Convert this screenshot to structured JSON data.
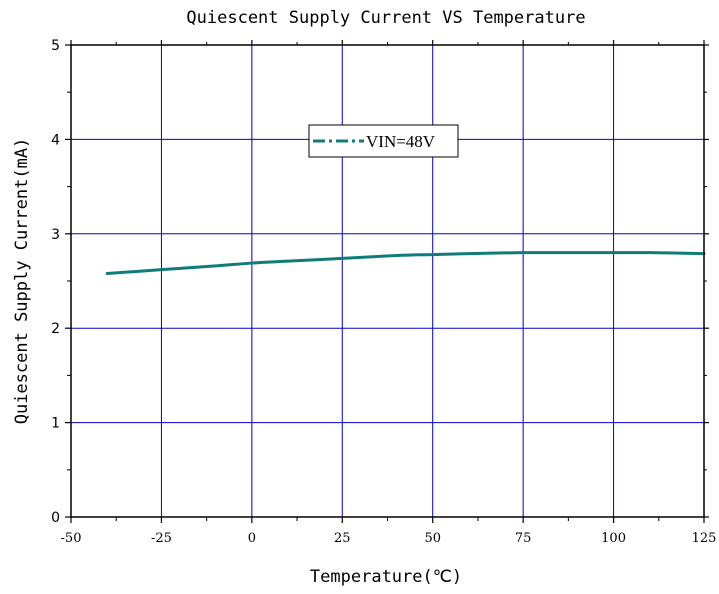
{
  "chart_data": {
    "type": "line",
    "title": "Quiescent Supply Current VS Temperature",
    "xlabel": "Temperature(℃)",
    "ylabel": "Quiescent Supply Current(mA)",
    "xlim": [
      -50,
      125
    ],
    "ylim": [
      0,
      5
    ],
    "xticks": [
      -50,
      -25,
      0,
      25,
      50,
      75,
      100,
      125
    ],
    "yticks": [
      0,
      1,
      2,
      3,
      4,
      5
    ],
    "grid": true,
    "legend_position": "top-center",
    "series": [
      {
        "name": "VIN=48V",
        "color": "#0e7c7b",
        "x": [
          -40,
          -25,
          -10,
          0,
          10,
          25,
          40,
          50,
          60,
          75,
          90,
          100,
          110,
          125
        ],
        "y": [
          2.58,
          2.62,
          2.66,
          2.69,
          2.71,
          2.74,
          2.77,
          2.78,
          2.79,
          2.8,
          2.8,
          2.8,
          2.8,
          2.79
        ]
      }
    ],
    "grid_color": "#0000cc",
    "axis_color": "#000000"
  }
}
